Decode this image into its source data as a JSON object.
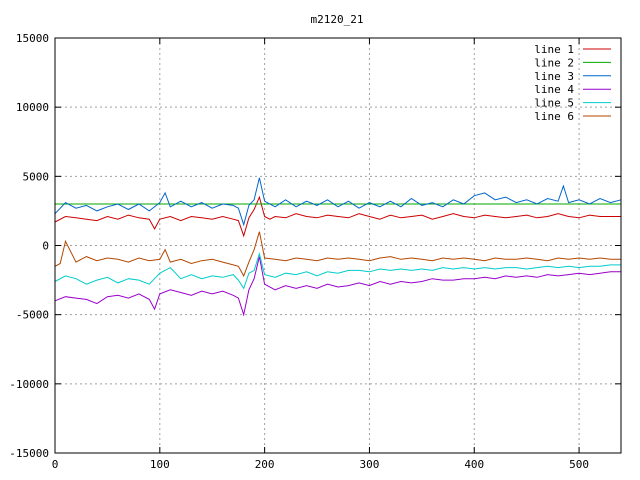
{
  "chart_data": {
    "type": "line",
    "title": "m2120_21",
    "xlabel": "",
    "ylabel": "",
    "xlim": [
      0,
      540
    ],
    "ylim": [
      -15000,
      15000
    ],
    "x_ticks": [
      0,
      100,
      200,
      300,
      400,
      500
    ],
    "y_ticks": [
      -15000,
      -10000,
      -5000,
      0,
      5000,
      10000,
      15000
    ],
    "grid": true,
    "legend_position": "top-right",
    "series": [
      {
        "name": "line 1",
        "color": "#cc0000",
        "x": [
          0,
          10,
          20,
          30,
          40,
          50,
          60,
          70,
          80,
          90,
          95,
          100,
          110,
          120,
          130,
          140,
          150,
          160,
          170,
          175,
          180,
          185,
          190,
          195,
          200,
          205,
          210,
          220,
          230,
          240,
          250,
          260,
          270,
          280,
          290,
          300,
          310,
          320,
          330,
          340,
          350,
          360,
          370,
          380,
          390,
          400,
          410,
          420,
          430,
          440,
          450,
          460,
          470,
          480,
          490,
          500,
          510,
          520,
          530,
          540
        ],
        "y": [
          1700,
          2100,
          2000,
          1900,
          1800,
          2100,
          1900,
          2200,
          2000,
          1900,
          1200,
          1900,
          2100,
          1800,
          2100,
          2000,
          1900,
          2100,
          1900,
          1800,
          700,
          2000,
          2600,
          3500,
          2100,
          1900,
          2100,
          2000,
          2300,
          2100,
          2000,
          2200,
          2100,
          2000,
          2300,
          2100,
          1900,
          2200,
          2000,
          2100,
          2200,
          1900,
          2100,
          2300,
          2100,
          2000,
          2200,
          2100,
          2000,
          2100,
          2200,
          2000,
          2100,
          2300,
          2100,
          2000,
          2200,
          2100,
          2100,
          2100
        ]
      },
      {
        "name": "line 2",
        "color": "#00aa00",
        "x": [
          0,
          540
        ],
        "y": [
          3000,
          3000
        ]
      },
      {
        "name": "line 3",
        "color": "#0066cc",
        "x": [
          0,
          10,
          20,
          30,
          40,
          50,
          60,
          70,
          80,
          90,
          100,
          105,
          110,
          120,
          130,
          140,
          150,
          160,
          170,
          175,
          180,
          185,
          190,
          195,
          200,
          210,
          220,
          230,
          240,
          250,
          260,
          270,
          280,
          290,
          300,
          310,
          320,
          330,
          340,
          350,
          360,
          370,
          380,
          390,
          400,
          410,
          420,
          430,
          440,
          450,
          460,
          470,
          480,
          485,
          490,
          500,
          510,
          520,
          530,
          540
        ],
        "y": [
          2300,
          3100,
          2700,
          2900,
          2500,
          2800,
          3000,
          2600,
          3000,
          2500,
          3100,
          3800,
          2800,
          3200,
          2800,
          3100,
          2700,
          3000,
          2900,
          2700,
          1500,
          2900,
          3300,
          4900,
          3200,
          2800,
          3300,
          2800,
          3200,
          2900,
          3300,
          2800,
          3200,
          2700,
          3100,
          2800,
          3200,
          2800,
          3400,
          2900,
          3100,
          2800,
          3300,
          3000,
          3600,
          3800,
          3300,
          3500,
          3100,
          3300,
          3000,
          3400,
          3200,
          4300,
          3100,
          3300,
          3000,
          3400,
          3100,
          3300
        ]
      },
      {
        "name": "line 4",
        "color": "#9900cc",
        "x": [
          0,
          10,
          20,
          30,
          40,
          50,
          60,
          70,
          80,
          90,
          95,
          100,
          110,
          120,
          130,
          140,
          150,
          160,
          170,
          175,
          180,
          185,
          190,
          195,
          200,
          210,
          220,
          230,
          240,
          250,
          260,
          270,
          280,
          290,
          300,
          310,
          320,
          330,
          340,
          350,
          360,
          370,
          380,
          390,
          400,
          410,
          420,
          430,
          440,
          450,
          460,
          470,
          480,
          490,
          500,
          510,
          520,
          530,
          540
        ],
        "y": [
          -4000,
          -3700,
          -3800,
          -3900,
          -4200,
          -3700,
          -3600,
          -3800,
          -3500,
          -3900,
          -4600,
          -3500,
          -3200,
          -3400,
          -3600,
          -3300,
          -3500,
          -3300,
          -3600,
          -3800,
          -5000,
          -3200,
          -2400,
          -800,
          -2800,
          -3200,
          -2900,
          -3100,
          -2900,
          -3100,
          -2800,
          -3000,
          -2900,
          -2700,
          -2900,
          -2600,
          -2800,
          -2600,
          -2700,
          -2600,
          -2400,
          -2500,
          -2500,
          -2400,
          -2400,
          -2300,
          -2400,
          -2200,
          -2300,
          -2200,
          -2300,
          -2100,
          -2200,
          -2100,
          -2000,
          -2100,
          -2000,
          -1900,
          -1900
        ]
      },
      {
        "name": "line 5",
        "color": "#00cccc",
        "x": [
          0,
          10,
          20,
          30,
          40,
          50,
          60,
          70,
          80,
          90,
          100,
          110,
          120,
          130,
          140,
          150,
          160,
          170,
          175,
          180,
          185,
          190,
          195,
          200,
          210,
          220,
          230,
          240,
          250,
          260,
          270,
          280,
          290,
          300,
          310,
          320,
          330,
          340,
          350,
          360,
          370,
          380,
          390,
          400,
          410,
          420,
          430,
          440,
          450,
          460,
          470,
          480,
          490,
          500,
          510,
          520,
          530,
          540
        ],
        "y": [
          -2600,
          -2200,
          -2400,
          -2800,
          -2500,
          -2300,
          -2700,
          -2400,
          -2500,
          -2800,
          -2000,
          -1600,
          -2400,
          -2100,
          -2400,
          -2200,
          -2300,
          -2100,
          -2500,
          -3100,
          -2000,
          -1800,
          -600,
          -2100,
          -2300,
          -2000,
          -2100,
          -1900,
          -2200,
          -1900,
          -2000,
          -1800,
          -1800,
          -1900,
          -1700,
          -1800,
          -1700,
          -1800,
          -1700,
          -1800,
          -1600,
          -1700,
          -1600,
          -1700,
          -1600,
          -1700,
          -1600,
          -1600,
          -1700,
          -1600,
          -1500,
          -1600,
          -1500,
          -1600,
          -1500,
          -1500,
          -1400,
          -1400
        ]
      },
      {
        "name": "line 6",
        "color": "#b34700",
        "x": [
          0,
          5,
          10,
          20,
          30,
          40,
          50,
          60,
          70,
          80,
          90,
          100,
          105,
          110,
          120,
          130,
          140,
          150,
          160,
          170,
          175,
          180,
          185,
          190,
          195,
          200,
          210,
          220,
          230,
          240,
          250,
          260,
          270,
          280,
          290,
          300,
          310,
          320,
          330,
          340,
          350,
          360,
          370,
          380,
          390,
          400,
          410,
          420,
          430,
          440,
          450,
          460,
          470,
          480,
          490,
          500,
          510,
          520,
          530,
          540
        ],
        "y": [
          -1500,
          -1300,
          300,
          -1200,
          -800,
          -1100,
          -900,
          -1000,
          -1200,
          -900,
          -1100,
          -1000,
          -300,
          -1200,
          -1000,
          -1300,
          -1100,
          -1000,
          -1200,
          -1400,
          -1500,
          -2200,
          -1200,
          -300,
          1000,
          -900,
          -1000,
          -1100,
          -900,
          -1000,
          -1100,
          -900,
          -1000,
          -900,
          -1000,
          -1100,
          -900,
          -800,
          -1000,
          -900,
          -1000,
          -1100,
          -900,
          -1000,
          -900,
          -1000,
          -1100,
          -900,
          -1000,
          -1000,
          -900,
          -1000,
          -1100,
          -900,
          -1000,
          -900,
          -1000,
          -900,
          -1000,
          -1000
        ]
      }
    ]
  }
}
